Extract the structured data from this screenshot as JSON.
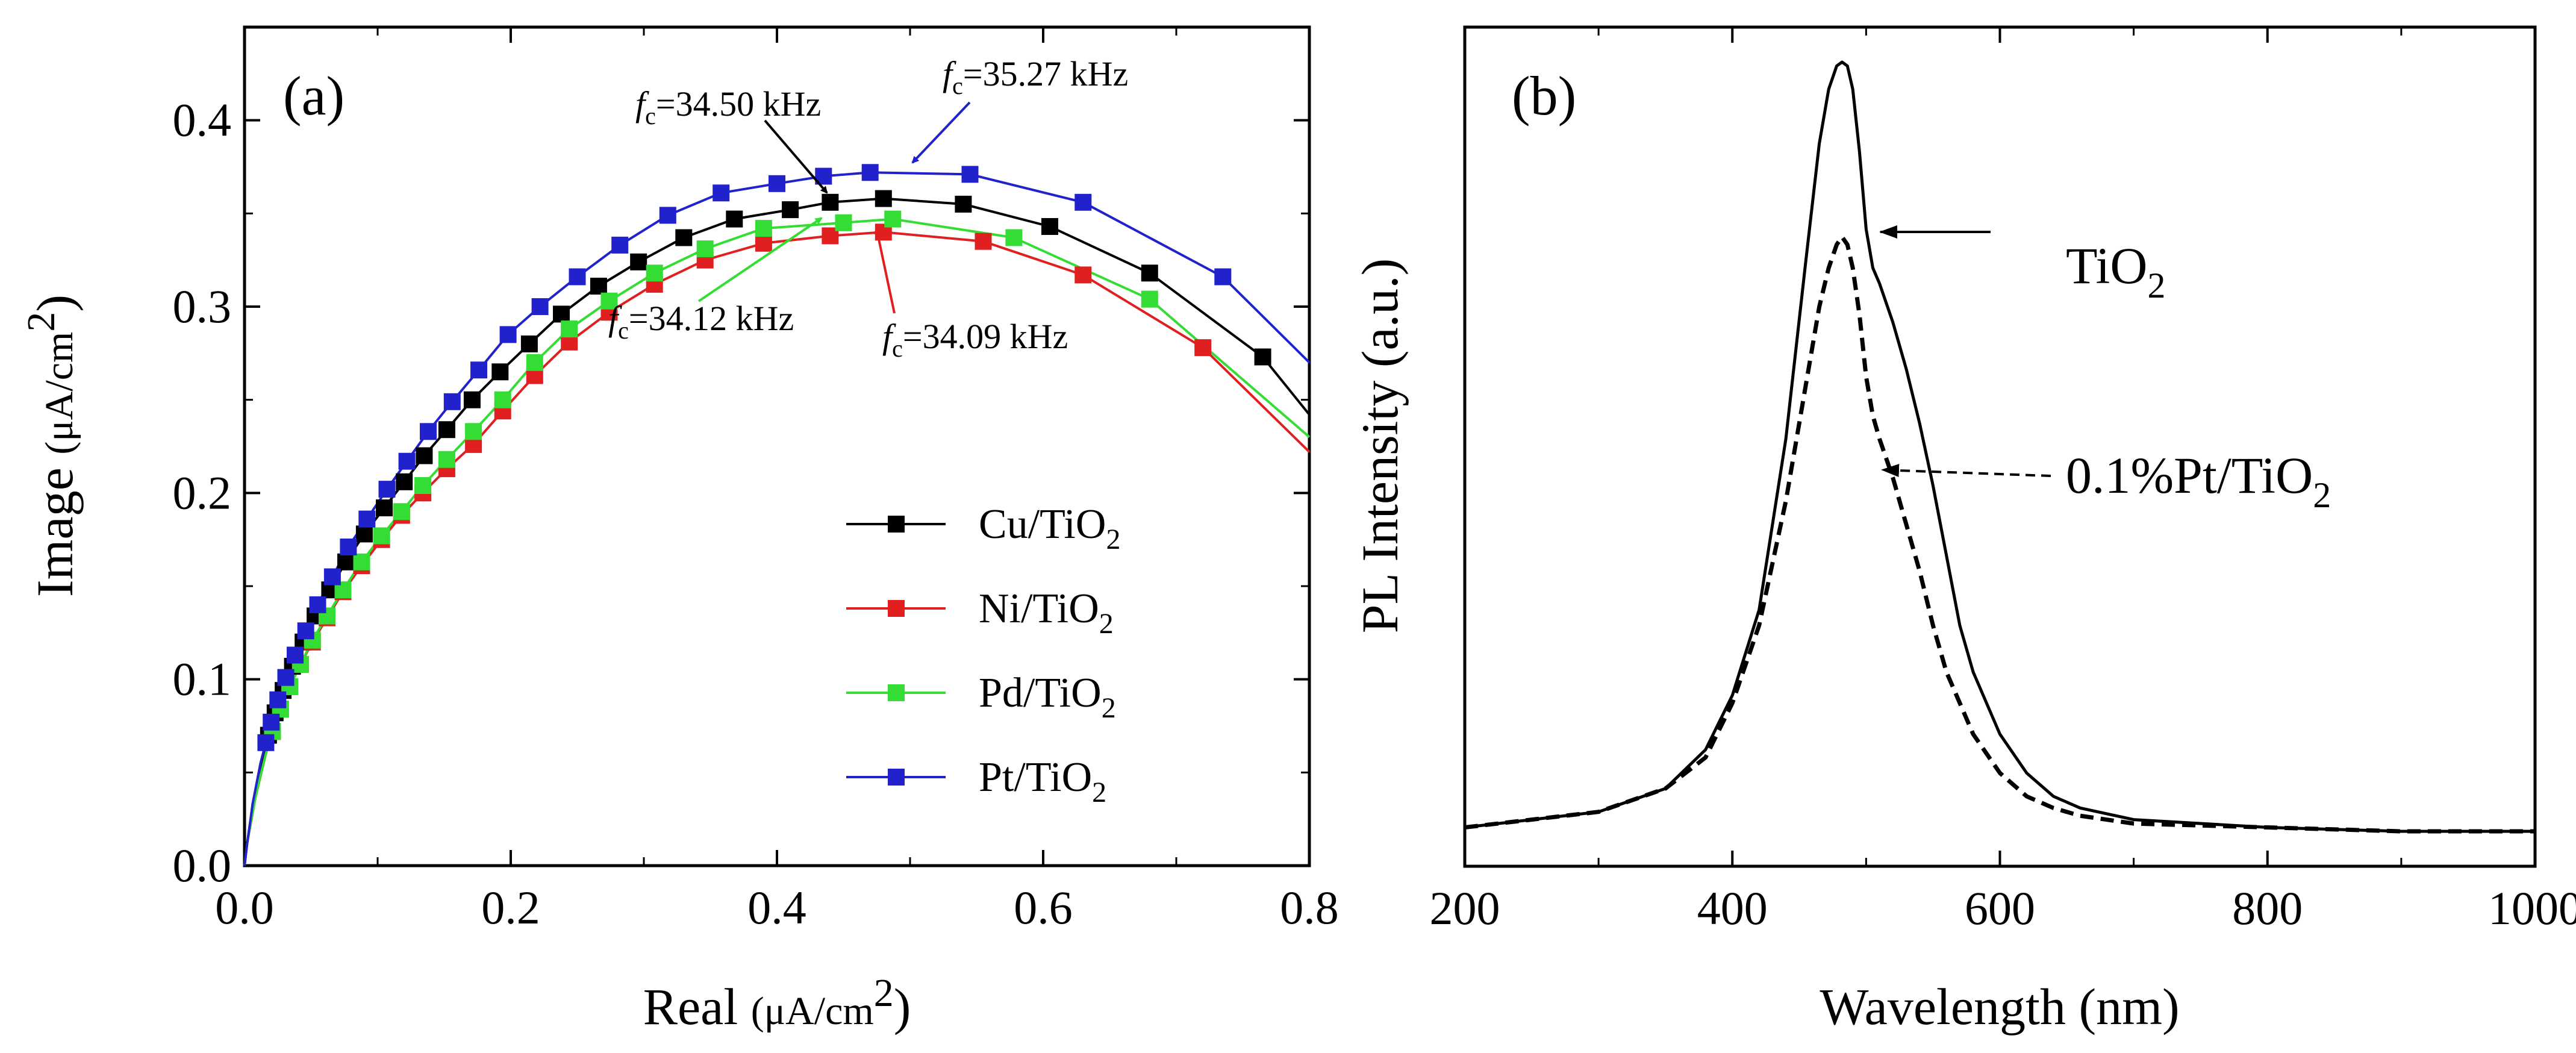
{
  "chart_data": [
    {
      "type": "scatter",
      "panel_label": "(a)",
      "xlabel": "Real",
      "xlabel_unit": "(μA/cm",
      "xlabel_unit_sup": "2",
      "xlabel_unit_close": ")",
      "ylabel": "Image",
      "ylabel_unit": "(μA/cm",
      "ylabel_unit_sup": "2",
      "ylabel_unit_close": ")",
      "xlim": [
        0.0,
        0.8
      ],
      "ylim": [
        0.0,
        0.45
      ],
      "xticks": [
        "0.0",
        "0.2",
        "0.4",
        "0.6",
        "0.8"
      ],
      "yticks": [
        "0.0",
        "0.1",
        "0.2",
        "0.3",
        "0.4"
      ],
      "legend_position": "bottom-right",
      "series": [
        {
          "name": "Cu/TiO",
          "sub": "2",
          "color": "#000000",
          "x": [
            0.0,
            0.002,
            0.004,
            0.007,
            0.01,
            0.014,
            0.018,
            0.023,
            0.029,
            0.036,
            0.044,
            0.053,
            0.064,
            0.076,
            0.09,
            0.105,
            0.12,
            0.135,
            0.152,
            0.171,
            0.192,
            0.214,
            0.238,
            0.266,
            0.296,
            0.33,
            0.368,
            0.41,
            0.44,
            0.48,
            0.54,
            0.605,
            0.68,
            0.765,
            0.8
          ],
          "y": [
            0.0,
            0.012,
            0.022,
            0.034,
            0.046,
            0.058,
            0.07,
            0.082,
            0.094,
            0.107,
            0.12,
            0.134,
            0.148,
            0.163,
            0.178,
            0.192,
            0.206,
            0.22,
            0.234,
            0.25,
            0.265,
            0.28,
            0.296,
            0.311,
            0.324,
            0.337,
            0.347,
            0.352,
            0.356,
            0.358,
            0.355,
            0.343,
            0.318,
            0.273,
            0.242
          ],
          "markers_from": 6
        },
        {
          "name": "Ni/TiO",
          "sub": "2",
          "color": "#e02020",
          "x": [
            0.0,
            0.002,
            0.005,
            0.008,
            0.012,
            0.016,
            0.021,
            0.027,
            0.034,
            0.042,
            0.051,
            0.062,
            0.074,
            0.088,
            0.103,
            0.118,
            0.134,
            0.152,
            0.172,
            0.194,
            0.218,
            0.244,
            0.274,
            0.308,
            0.346,
            0.39,
            0.44,
            0.48,
            0.555,
            0.63,
            0.72,
            0.8
          ],
          "y": [
            0.0,
            0.012,
            0.024,
            0.036,
            0.048,
            0.06,
            0.072,
            0.084,
            0.096,
            0.108,
            0.12,
            0.133,
            0.147,
            0.161,
            0.175,
            0.188,
            0.2,
            0.213,
            0.226,
            0.244,
            0.263,
            0.281,
            0.297,
            0.312,
            0.325,
            0.334,
            0.338,
            0.34,
            0.335,
            0.317,
            0.278,
            0.222
          ],
          "markers_from": 6
        },
        {
          "name": "Pd/TiO",
          "sub": "2",
          "color": "#33dd33",
          "x": [
            0.0,
            0.002,
            0.005,
            0.008,
            0.012,
            0.016,
            0.021,
            0.027,
            0.034,
            0.042,
            0.051,
            0.062,
            0.074,
            0.088,
            0.103,
            0.118,
            0.134,
            0.152,
            0.172,
            0.194,
            0.218,
            0.244,
            0.274,
            0.308,
            0.346,
            0.39,
            0.45,
            0.487,
            0.578,
            0.68,
            0.8
          ],
          "y": [
            0.0,
            0.012,
            0.024,
            0.036,
            0.048,
            0.06,
            0.072,
            0.084,
            0.096,
            0.108,
            0.121,
            0.134,
            0.148,
            0.163,
            0.177,
            0.19,
            0.204,
            0.218,
            0.233,
            0.25,
            0.27,
            0.288,
            0.303,
            0.318,
            0.331,
            0.342,
            0.345,
            0.347,
            0.337,
            0.304,
            0.23
          ],
          "markers_from": 6
        },
        {
          "name": "Pt/TiO",
          "sub": "2",
          "color": "#2222cc",
          "x": [
            0.0,
            0.002,
            0.004,
            0.006,
            0.009,
            0.012,
            0.016,
            0.02,
            0.025,
            0.031,
            0.038,
            0.046,
            0.055,
            0.066,
            0.078,
            0.092,
            0.107,
            0.122,
            0.138,
            0.156,
            0.176,
            0.198,
            0.222,
            0.25,
            0.282,
            0.318,
            0.358,
            0.4,
            0.435,
            0.47,
            0.545,
            0.63,
            0.735,
            0.8
          ],
          "y": [
            0.0,
            0.012,
            0.022,
            0.033,
            0.044,
            0.055,
            0.066,
            0.077,
            0.089,
            0.101,
            0.113,
            0.126,
            0.14,
            0.155,
            0.171,
            0.186,
            0.202,
            0.217,
            0.233,
            0.249,
            0.266,
            0.285,
            0.3,
            0.316,
            0.333,
            0.349,
            0.361,
            0.366,
            0.37,
            0.372,
            0.371,
            0.356,
            0.316,
            0.27
          ],
          "markers_from": 6
        }
      ],
      "annotations": [
        {
          "italic": "f",
          "sub": "c",
          "text": "=34.50 kHz",
          "color": "#000000"
        },
        {
          "italic": "f",
          "sub": "c",
          "text": "=35.27 kHz",
          "color": "#2222cc"
        },
        {
          "italic": "f",
          "sub": "c",
          "text": "=34.12 kHz",
          "color": "#33dd33"
        },
        {
          "italic": "f",
          "sub": "c",
          "text": "=34.09 kHz",
          "color": "#e02020"
        }
      ]
    },
    {
      "type": "line",
      "panel_label": "(b)",
      "xlabel": "Wavelength (nm)",
      "ylabel": "PL Intensity (a.u.)",
      "xlim": [
        200,
        1000
      ],
      "ylim": [
        0,
        1.08
      ],
      "xticks": [
        "200",
        "400",
        "600",
        "800",
        "1000"
      ],
      "y_tick_labels_shown": false,
      "series": [
        {
          "name": "TiO",
          "sub": "2",
          "style": "solid",
          "color": "#000000",
          "x": [
            200,
            250,
            300,
            350,
            380,
            400,
            420,
            440,
            455,
            465,
            472,
            478,
            482,
            486,
            490,
            495,
            500,
            505,
            510,
            520,
            530,
            540,
            550,
            560,
            570,
            580,
            600,
            620,
            640,
            660,
            700,
            800,
            900,
            1000
          ],
          "y": [
            0.05,
            0.06,
            0.07,
            0.1,
            0.15,
            0.22,
            0.33,
            0.55,
            0.78,
            0.93,
            1.0,
            1.03,
            1.035,
            1.03,
            1.0,
            0.92,
            0.82,
            0.77,
            0.75,
            0.7,
            0.64,
            0.57,
            0.49,
            0.4,
            0.31,
            0.25,
            0.17,
            0.12,
            0.09,
            0.075,
            0.06,
            0.05,
            0.045,
            0.045
          ]
        },
        {
          "name": "0.1%Pt/TiO",
          "sub": "2",
          "style": "dashed",
          "color": "#000000",
          "x": [
            200,
            250,
            300,
            350,
            380,
            400,
            420,
            440,
            455,
            465,
            472,
            478,
            482,
            486,
            490,
            495,
            500,
            505,
            510,
            520,
            530,
            540,
            550,
            560,
            580,
            600,
            620,
            640,
            660,
            700,
            800,
            900,
            1000
          ],
          "y": [
            0.05,
            0.06,
            0.07,
            0.1,
            0.14,
            0.21,
            0.31,
            0.47,
            0.62,
            0.72,
            0.77,
            0.8,
            0.81,
            0.8,
            0.77,
            0.71,
            0.63,
            0.58,
            0.55,
            0.5,
            0.44,
            0.38,
            0.31,
            0.25,
            0.17,
            0.12,
            0.09,
            0.075,
            0.065,
            0.055,
            0.05,
            0.045,
            0.045
          ]
        }
      ],
      "annotations": [
        {
          "text": "TiO",
          "sub": "2",
          "arrow_style": "solid"
        },
        {
          "text": "0.1%Pt/TiO",
          "sub": "2",
          "arrow_style": "dashed"
        }
      ]
    }
  ]
}
